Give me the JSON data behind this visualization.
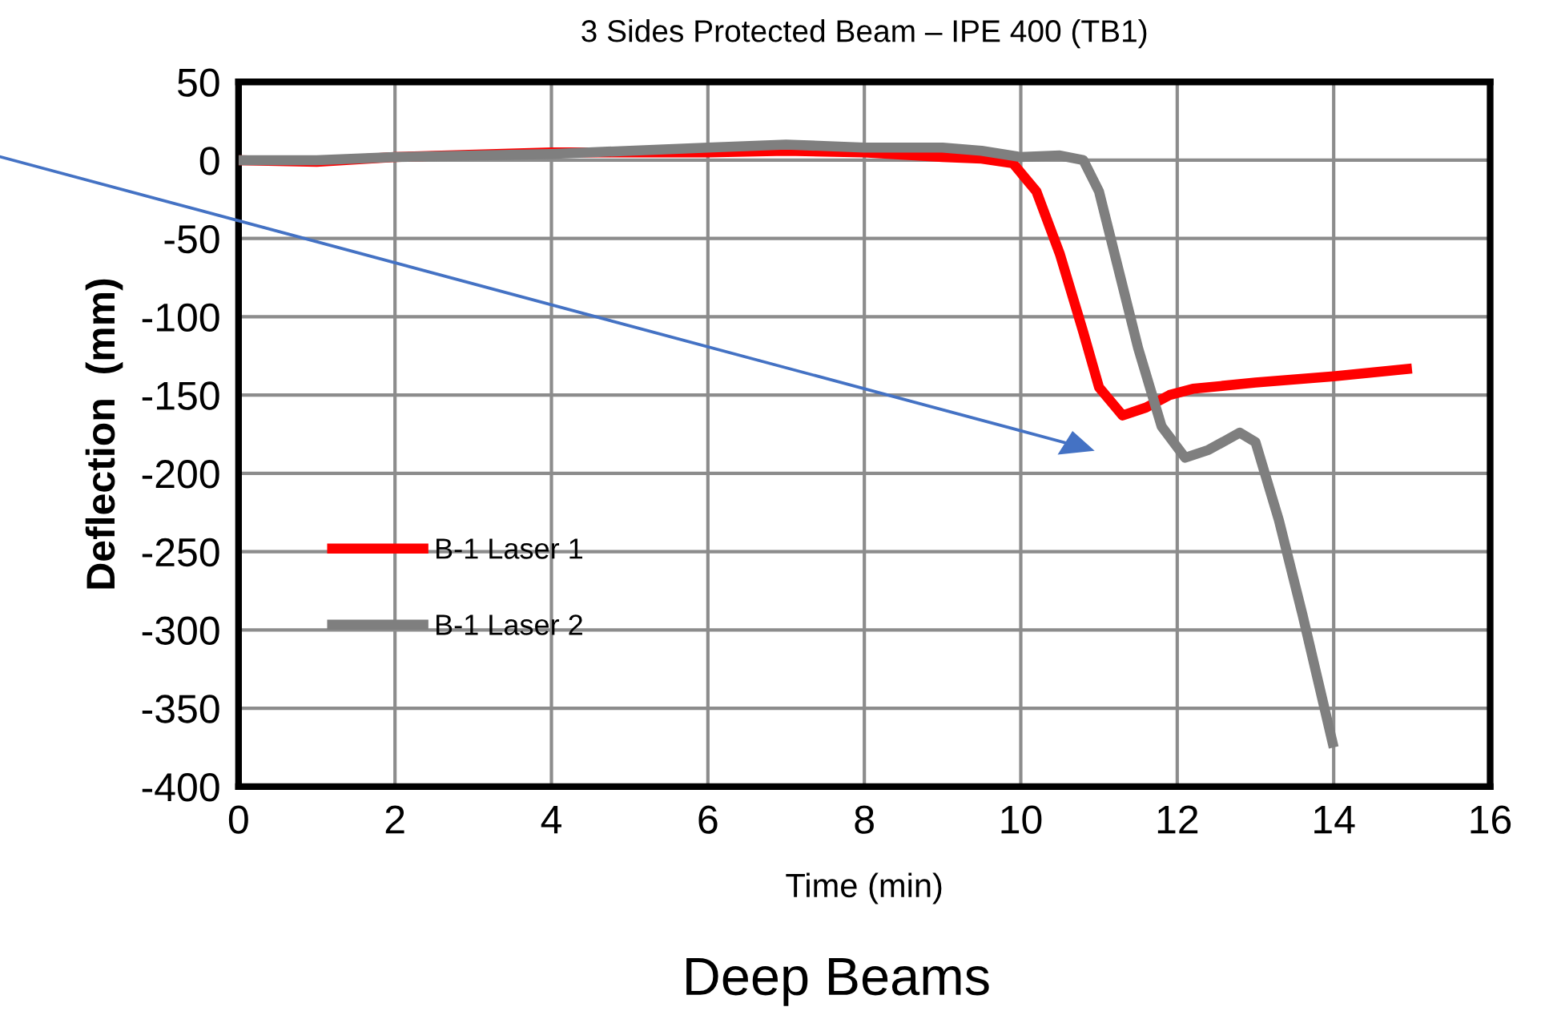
{
  "chart_data": {
    "type": "line",
    "title": "3 Sides Protected Beam – IPE 400 (TB1)",
    "xlabel": "Time (min)",
    "ylabel": "Deflection  (mm)",
    "annotations": [
      "Deep Beams"
    ],
    "series": [
      {
        "name": "B-1 Laser 1",
        "color": "#ff0000",
        "x": [
          0,
          1,
          2,
          4,
          6,
          7,
          8,
          9,
          9.5,
          9.9,
          10.2,
          10.5,
          10.8,
          11.0,
          11.3,
          11.6,
          11.9,
          12.2,
          13,
          14,
          15
        ],
        "values": [
          0,
          -1,
          2,
          5,
          5,
          6,
          5,
          2,
          1,
          -2,
          -20,
          -60,
          -110,
          -145,
          -163,
          -158,
          -150,
          -146,
          -142,
          -138,
          -133
        ]
      },
      {
        "name": "B-1 Laser 2",
        "color": "#7f7f7f",
        "x": [
          0,
          1,
          2,
          4,
          6,
          7,
          8,
          9,
          9.5,
          10,
          10.5,
          10.8,
          11.0,
          11.2,
          11.5,
          11.8,
          12.1,
          12.4,
          12.8,
          13.0,
          13.3,
          13.6,
          14.0
        ],
        "values": [
          0,
          0,
          2,
          4,
          8,
          10,
          8,
          8,
          6,
          2,
          3,
          0,
          -20,
          -60,
          -120,
          -170,
          -190,
          -185,
          -174,
          -180,
          -230,
          -290,
          -375
        ]
      }
    ],
    "xlim": [
      0,
      16
    ],
    "xticks": [
      0,
      2,
      4,
      6,
      8,
      10,
      12,
      14,
      16
    ],
    "ylim": [
      -400,
      50
    ],
    "yticks": [
      -400,
      -350,
      -300,
      -250,
      -200,
      -150,
      -100,
      -50,
      0,
      50
    ],
    "grid": true,
    "legend": "left",
    "marker": "none",
    "line_style": "solid"
  }
}
